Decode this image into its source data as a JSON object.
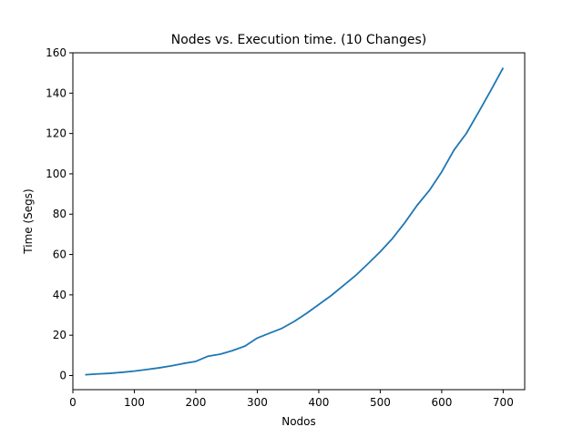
{
  "chart_data": {
    "type": "line",
    "title": "Nodes vs. Execution time. (10 Changes)",
    "xlabel": "Nodos",
    "ylabel": "Time (Segs)",
    "xlim": [
      0,
      735
    ],
    "ylim": [
      -7,
      160
    ],
    "xticks": [
      0,
      100,
      200,
      300,
      400,
      500,
      600,
      700
    ],
    "yticks": [
      0,
      20,
      40,
      60,
      80,
      100,
      120,
      140,
      160
    ],
    "grid": false,
    "line_color": "#1f77b4",
    "series": [
      {
        "x": [
          20,
          40,
          60,
          80,
          100,
          120,
          140,
          160,
          180,
          200,
          220,
          240,
          260,
          280,
          300,
          320,
          340,
          360,
          380,
          400,
          420,
          440,
          460,
          480,
          500,
          520,
          540,
          560,
          580,
          600,
          620,
          640,
          660,
          680,
          700
        ],
        "y": [
          0.4,
          0.8,
          1.1,
          1.6,
          2.2,
          3.0,
          3.8,
          4.8,
          6.0,
          7.0,
          9.6,
          10.6,
          12.4,
          14.6,
          18.6,
          21.0,
          23.4,
          26.8,
          30.8,
          35.2,
          39.6,
          44.6,
          49.6,
          55.4,
          61.4,
          68.0,
          75.8,
          84.4,
          91.8,
          101.0,
          111.8,
          120.0,
          130.6,
          141.4,
          152.6
        ]
      }
    ]
  }
}
